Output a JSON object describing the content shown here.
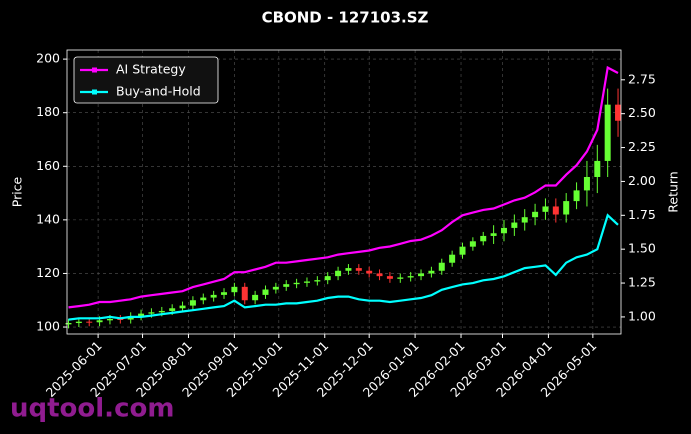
{
  "chart_data": {
    "type": "candlestick",
    "title": "CBOND - 127103.SZ",
    "watermark": "uqtool.com",
    "ylabel": "Price",
    "y2label": "Return",
    "grid": true,
    "legend": "upper left",
    "up_color": "#66ff33",
    "down_color": "#ff3333",
    "x": [
      "2025-05-12",
      "2025-05-19",
      "2025-05-26",
      "2025-06-02",
      "2025-06-09",
      "2025-06-16",
      "2025-06-23",
      "2025-06-30",
      "2025-07-07",
      "2025-07-14",
      "2025-07-21",
      "2025-07-28",
      "2025-08-04",
      "2025-08-11",
      "2025-08-18",
      "2025-08-25",
      "2025-09-01",
      "2025-09-08",
      "2025-09-15",
      "2025-09-22",
      "2025-09-29",
      "2025-10-06",
      "2025-10-13",
      "2025-10-20",
      "2025-10-27",
      "2025-11-03",
      "2025-11-10",
      "2025-11-17",
      "2025-11-24",
      "2025-12-01",
      "2025-12-08",
      "2025-12-15",
      "2025-12-22",
      "2025-12-29",
      "2026-01-05",
      "2026-01-12",
      "2026-01-19",
      "2026-01-26",
      "2026-02-02",
      "2026-02-09",
      "2026-02-16",
      "2026-02-23",
      "2026-03-02",
      "2026-03-09",
      "2026-03-16",
      "2026-03-23",
      "2026-03-30",
      "2026-04-06",
      "2026-04-13",
      "2026-04-20",
      "2026-04-27",
      "2026-05-04",
      "2026-05-11",
      "2026-05-18"
    ],
    "open": [
      101,
      101.5,
      102,
      101.8,
      102.5,
      103,
      102.8,
      104,
      105,
      105.5,
      106,
      107,
      108,
      110,
      111,
      112,
      113,
      115,
      110,
      112,
      114,
      115,
      116,
      116.5,
      117,
      117.5,
      119,
      121,
      122,
      121,
      120,
      119,
      118,
      118.5,
      119,
      120,
      121,
      124,
      127,
      130,
      132,
      134,
      135,
      137,
      139,
      141,
      143,
      145,
      142,
      147,
      151,
      156,
      162,
      183
    ],
    "high": [
      103,
      103.5,
      103.5,
      104,
      104.5,
      104.5,
      105.5,
      106.5,
      107,
      107.5,
      108.5,
      109.5,
      111.5,
      112.5,
      113.5,
      114.5,
      116.5,
      116.5,
      113.5,
      115.5,
      116.5,
      117.5,
      118,
      118.5,
      119,
      120.5,
      122.5,
      123.5,
      123.5,
      122.5,
      121.5,
      120.5,
      120,
      120.5,
      121.5,
      122.5,
      125.5,
      128.5,
      131.5,
      133.5,
      135.5,
      138,
      140,
      142,
      144,
      146,
      148,
      148,
      150,
      154,
      162,
      168,
      189,
      189
    ],
    "low": [
      99.5,
      100,
      100.3,
      100.3,
      101,
      101.3,
      101.3,
      102.5,
      103.5,
      104,
      104.5,
      105.5,
      106.5,
      108.5,
      109.5,
      110.5,
      111.5,
      108.5,
      108.5,
      110.5,
      112.5,
      113.5,
      114.5,
      115,
      115.5,
      116,
      117.5,
      119.5,
      119.5,
      118.5,
      117.5,
      116.5,
      116.5,
      117,
      117.5,
      118.5,
      119.5,
      122.5,
      125.5,
      128.5,
      130.5,
      131,
      132,
      134,
      136,
      138,
      140,
      139,
      139,
      144,
      145,
      150,
      156,
      171
    ],
    "close": [
      101.5,
      102,
      101.8,
      102.5,
      103,
      102.8,
      104,
      105,
      105.5,
      106,
      107,
      108,
      110,
      111,
      112,
      113,
      115,
      110,
      112,
      114,
      115,
      116,
      116.5,
      117,
      117.5,
      119,
      121,
      122,
      121,
      120,
      119,
      118,
      118.5,
      119,
      120,
      121,
      124,
      127,
      130,
      132,
      134,
      135,
      137,
      139,
      141,
      143,
      145,
      142,
      147,
      151,
      156,
      162,
      183,
      177
    ],
    "series": [
      {
        "name": "AI Strategy",
        "color": "#ff00ff",
        "axis": "y2",
        "values": [
          1.07,
          1.08,
          1.09,
          1.11,
          1.11,
          1.12,
          1.13,
          1.15,
          1.16,
          1.17,
          1.18,
          1.19,
          1.22,
          1.24,
          1.26,
          1.28,
          1.33,
          1.33,
          1.35,
          1.37,
          1.4,
          1.4,
          1.41,
          1.42,
          1.43,
          1.44,
          1.46,
          1.47,
          1.48,
          1.49,
          1.51,
          1.52,
          1.54,
          1.56,
          1.57,
          1.6,
          1.64,
          1.7,
          1.75,
          1.77,
          1.79,
          1.8,
          1.83,
          1.86,
          1.88,
          1.92,
          1.97,
          1.97,
          2.05,
          2.12,
          2.22,
          2.38,
          2.84,
          2.8
        ]
      },
      {
        "name": "Buy-and-Hold",
        "color": "#00ffff",
        "axis": "y2",
        "values": [
          0.98,
          0.99,
          0.99,
          0.99,
          1.0,
          0.99,
          1.0,
          1.0,
          1.01,
          1.02,
          1.03,
          1.04,
          1.05,
          1.06,
          1.07,
          1.08,
          1.12,
          1.07,
          1.08,
          1.09,
          1.09,
          1.1,
          1.1,
          1.11,
          1.12,
          1.14,
          1.15,
          1.15,
          1.13,
          1.12,
          1.12,
          1.11,
          1.12,
          1.13,
          1.14,
          1.16,
          1.2,
          1.22,
          1.24,
          1.25,
          1.27,
          1.28,
          1.3,
          1.33,
          1.36,
          1.37,
          1.38,
          1.31,
          1.4,
          1.44,
          1.46,
          1.5,
          1.75,
          1.68
        ]
      }
    ],
    "xlim": [
      "2025-05-11",
      "2026-05-20"
    ],
    "xticks": [
      "2025-06-01",
      "2025-07-01",
      "2025-08-01",
      "2025-09-01",
      "2025-10-01",
      "2025-11-01",
      "2025-12-01",
      "2026-01-01",
      "2026-02-01",
      "2026-03-01",
      "2026-04-01",
      "2026-05-01"
    ],
    "ylim": [
      97.4,
      203.4
    ],
    "yticks": [
      100,
      120,
      140,
      160,
      180,
      200
    ],
    "y2lim": [
      0.874,
      2.97
    ],
    "y2ticks": [
      {
        "value": 1,
        "label": "1.00"
      },
      {
        "value": 1.25,
        "label": "1.25"
      },
      {
        "value": 1.5,
        "label": "1.50"
      },
      {
        "value": 1.75,
        "label": "1.75"
      },
      {
        "value": 2,
        "label": "2.00"
      },
      {
        "value": 2.25,
        "label": "2.25"
      },
      {
        "value": 2.5,
        "label": "2.50"
      },
      {
        "value": 2.75,
        "label": "2.75"
      }
    ]
  }
}
